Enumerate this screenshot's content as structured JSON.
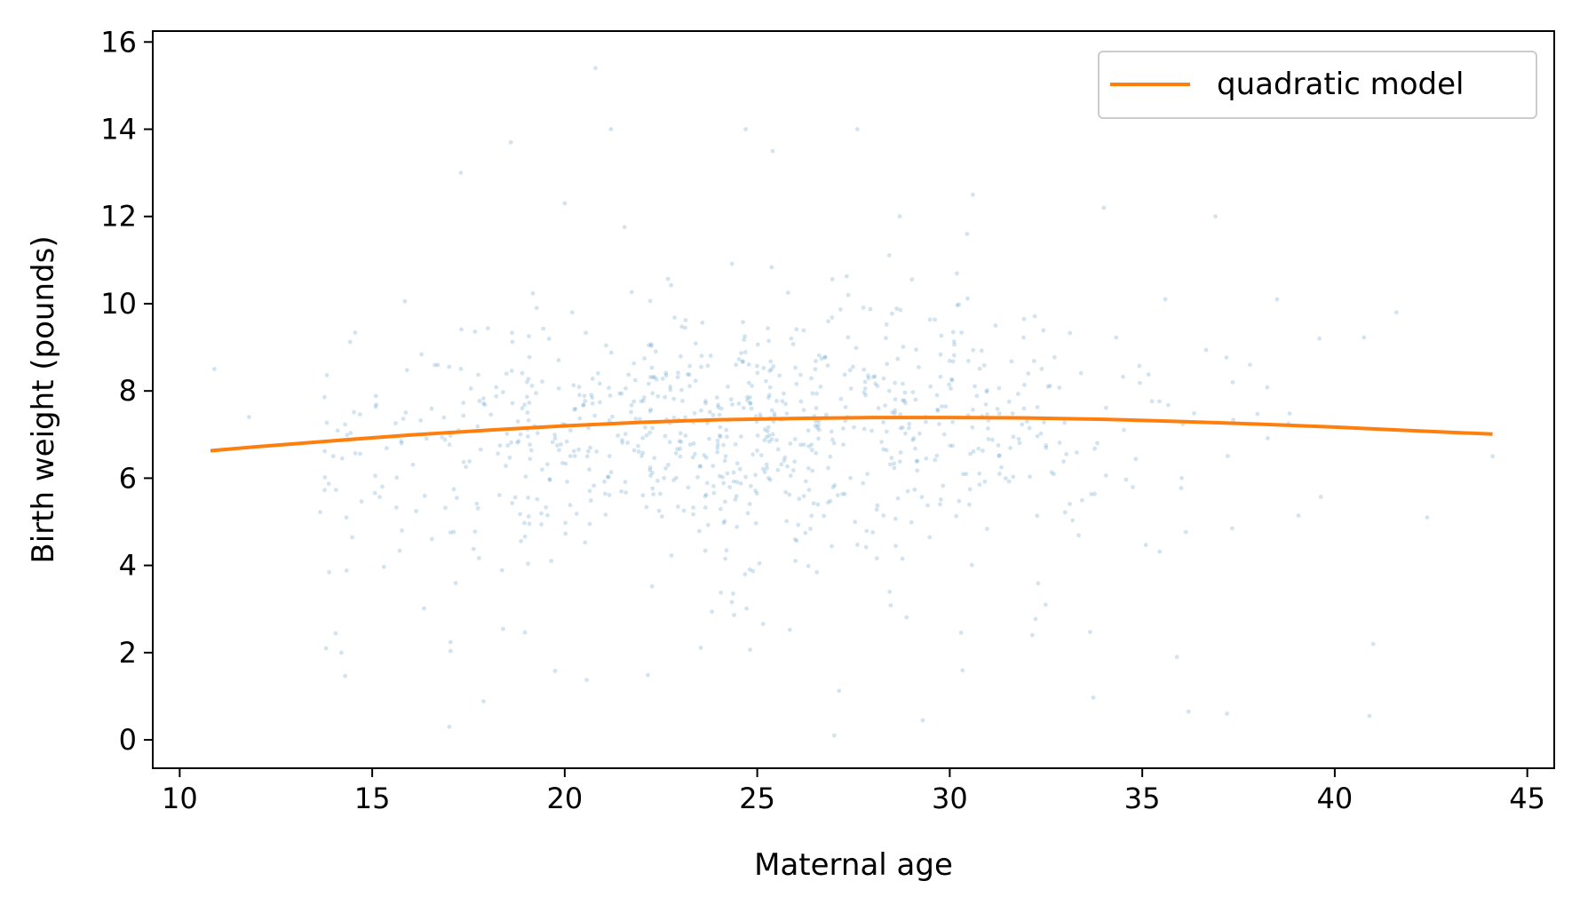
{
  "chart_data": {
    "type": "scatter",
    "title": "",
    "xlabel": "Maternal age",
    "ylabel": "Birth weight (pounds)",
    "xlim": [
      9.3,
      45.7
    ],
    "ylim": [
      -0.65,
      16.25
    ],
    "xticks": [
      10,
      15,
      20,
      25,
      30,
      35,
      40,
      45
    ],
    "yticks": [
      0,
      2,
      4,
      6,
      8,
      10,
      12,
      14,
      16
    ],
    "grid": false,
    "legend": {
      "placement": "top-right",
      "entries": [
        "quadratic model"
      ]
    },
    "colors": {
      "points": "#1f77b4",
      "model": "#ff7f0e"
    },
    "scatter": {
      "name": "",
      "point_count": 900,
      "x_range": [
        10.8,
        44.1
      ],
      "y_range": [
        0.1,
        15.4
      ],
      "peak_density": {
        "x": 24,
        "y": 7.4
      },
      "approx_sd_y": 1.4,
      "points": [
        [
          10.9,
          8.5
        ],
        [
          11.8,
          7.4
        ],
        [
          13.8,
          2.1
        ],
        [
          14.2,
          2.0
        ],
        [
          17.0,
          0.3
        ],
        [
          18.6,
          13.7
        ],
        [
          20.8,
          15.4
        ],
        [
          21.2,
          14.0
        ],
        [
          24.7,
          14.0
        ],
        [
          25.4,
          13.5
        ],
        [
          27.6,
          14.0
        ],
        [
          17.3,
          13.0
        ],
        [
          20.0,
          12.3
        ],
        [
          30.6,
          12.5
        ],
        [
          34.0,
          12.2
        ],
        [
          36.9,
          12.0
        ],
        [
          28.7,
          12.0
        ],
        [
          27.0,
          0.1
        ],
        [
          29.3,
          0.45
        ],
        [
          40.9,
          0.55
        ],
        [
          36.2,
          0.65
        ],
        [
          37.2,
          0.6
        ],
        [
          41.0,
          2.2
        ],
        [
          42.4,
          5.1
        ],
        [
          44.1,
          6.5
        ],
        [
          41.6,
          9.8
        ],
        [
          39.6,
          9.2
        ],
        [
          38.5,
          10.1
        ],
        [
          37.8,
          8.6
        ],
        [
          35.9,
          1.9
        ]
      ]
    },
    "series": [
      {
        "name": "quadratic model",
        "x": [
          10.8,
          12,
          14,
          16,
          18,
          20,
          22,
          24,
          26,
          28,
          30,
          32,
          34,
          36,
          38,
          40,
          42,
          44.1
        ],
        "y": [
          6.63,
          6.72,
          6.86,
          6.99,
          7.1,
          7.2,
          7.28,
          7.34,
          7.37,
          7.39,
          7.39,
          7.38,
          7.35,
          7.3,
          7.24,
          7.17,
          7.09,
          7.01
        ]
      }
    ]
  }
}
